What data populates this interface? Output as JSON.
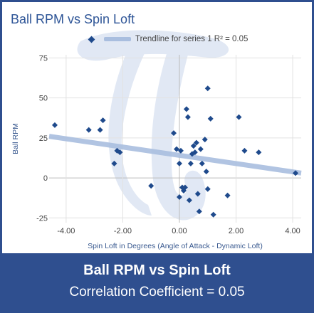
{
  "chart_data": {
    "type": "scatter",
    "title": "Ball RPM vs Spin Loft",
    "xlabel": "Spin Loft in Degrees (Angle of Attack - Dynamic Loft)",
    "ylabel": "Ball RPM",
    "xlim": [
      -4.6,
      4.3
    ],
    "ylim": [
      -28,
      77
    ],
    "x_ticks": [
      -4,
      -2,
      0,
      2,
      4
    ],
    "x_tick_labels": [
      "-4.00",
      "-2.00",
      "0.00",
      "2.00",
      "4.00"
    ],
    "y_ticks": [
      -25,
      0,
      25,
      50,
      75
    ],
    "y_tick_labels": [
      "-25",
      "0",
      "25",
      "50",
      "75"
    ],
    "grid": true,
    "legend_position": "top",
    "series": [
      {
        "name": "",
        "color": "#1f4a8c",
        "points": [
          [
            -4.4,
            33
          ],
          [
            -3.2,
            30
          ],
          [
            -2.8,
            30
          ],
          [
            -2.7,
            36
          ],
          [
            -2.3,
            9
          ],
          [
            -2.2,
            17
          ],
          [
            -2.1,
            16
          ],
          [
            -1.0,
            -5
          ],
          [
            -0.2,
            28
          ],
          [
            -0.1,
            18
          ],
          [
            0.0,
            9
          ],
          [
            0.0,
            -12
          ],
          [
            0.05,
            17
          ],
          [
            0.1,
            -6
          ],
          [
            0.15,
            -8
          ],
          [
            0.2,
            -6
          ],
          [
            0.25,
            43
          ],
          [
            0.3,
            38
          ],
          [
            0.35,
            -14
          ],
          [
            0.4,
            9
          ],
          [
            0.45,
            15
          ],
          [
            0.5,
            20
          ],
          [
            0.55,
            16
          ],
          [
            0.6,
            22
          ],
          [
            0.65,
            -10
          ],
          [
            0.7,
            -21
          ],
          [
            0.75,
            18
          ],
          [
            0.8,
            9
          ],
          [
            0.9,
            24
          ],
          [
            0.95,
            4
          ],
          [
            1.0,
            56
          ],
          [
            1.0,
            -7
          ],
          [
            1.1,
            37
          ],
          [
            1.2,
            -23
          ],
          [
            1.7,
            -11
          ],
          [
            2.1,
            38
          ],
          [
            2.3,
            17
          ],
          [
            2.8,
            16
          ],
          [
            4.1,
            3
          ]
        ]
      }
    ],
    "trendline": {
      "label": "Trendline for series 1 R² = 0.05",
      "color": "#a9bedf",
      "x": [
        -4.6,
        4.3
      ],
      "y": [
        26,
        3
      ]
    }
  },
  "banner": {
    "title": "Ball RPM vs Spin Loft",
    "subtitle": "Correlation Coefficient = 0.05"
  },
  "colors": {
    "frame": "#2f4f8f",
    "title": "#2e5597",
    "points": "#1f4a8c",
    "trend": "#a9bedf",
    "watermark": "#c9d6ec"
  }
}
